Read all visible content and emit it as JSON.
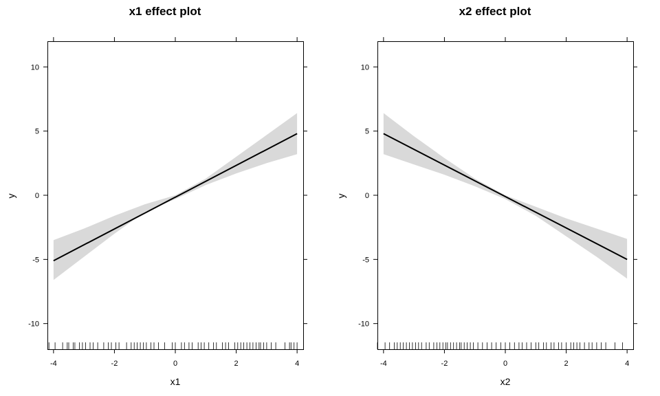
{
  "chart_data": [
    {
      "type": "line",
      "title": "x1 effect plot",
      "xlabel": "x1",
      "ylabel": "y",
      "xlim": [
        -4.2,
        4.2
      ],
      "ylim": [
        -12,
        12
      ],
      "xticks": [
        -4,
        -2,
        0,
        2,
        4
      ],
      "xtick_labels": [
        "-4",
        "-2",
        "0",
        "2",
        "4"
      ],
      "yticks": [
        -10,
        -5,
        0,
        5,
        10
      ],
      "ytick_labels": [
        "-10",
        "-5",
        "0",
        "5",
        "10"
      ],
      "grid": false,
      "fit": {
        "x": [
          -4,
          4
        ],
        "y": [
          -5.1,
          4.8
        ]
      },
      "band": {
        "x": [
          -4,
          -3,
          -2,
          -1,
          0,
          1,
          2,
          3,
          4
        ],
        "lower": [
          -6.6,
          -4.8,
          -3.0,
          -1.3,
          -0.3,
          0.8,
          1.7,
          2.5,
          3.2
        ],
        "upper": [
          -3.5,
          -2.6,
          -1.6,
          -0.7,
          0.0,
          1.3,
          3.0,
          4.7,
          6.4
        ]
      },
      "rug": [
        -4.15,
        -3.95,
        -3.7,
        -3.55,
        -3.5,
        -3.35,
        -3.3,
        -3.15,
        -3.05,
        -2.95,
        -2.8,
        -2.7,
        -2.55,
        -2.35,
        -2.2,
        -2.1,
        -1.95,
        -1.85,
        -1.6,
        -1.45,
        -1.35,
        -1.25,
        -1.15,
        -1.05,
        -0.95,
        -0.8,
        -0.7,
        -0.55,
        -0.35,
        -0.1,
        0.0,
        0.2,
        0.3,
        0.45,
        0.55,
        0.75,
        0.85,
        0.95,
        1.1,
        1.25,
        1.35,
        1.55,
        1.65,
        1.75,
        1.95,
        2.05,
        2.15,
        2.25,
        2.35,
        2.45,
        2.55,
        2.65,
        2.75,
        2.8,
        2.9,
        3.0,
        3.15,
        3.3,
        3.6,
        3.75,
        3.8,
        3.9,
        4.0
      ]
    },
    {
      "type": "line",
      "title": "x2 effect plot",
      "xlabel": "x2",
      "ylabel": "y",
      "xlim": [
        -4.2,
        4.2
      ],
      "ylim": [
        -12,
        12
      ],
      "xticks": [
        -4,
        -2,
        0,
        2,
        4
      ],
      "xtick_labels": [
        "-4",
        "-2",
        "0",
        "2",
        "4"
      ],
      "yticks": [
        -10,
        -5,
        0,
        5,
        10
      ],
      "ytick_labels": [
        "-10",
        "-5",
        "0",
        "5",
        "10"
      ],
      "grid": false,
      "fit": {
        "x": [
          -4,
          4
        ],
        "y": [
          4.8,
          -5.0
        ]
      },
      "band": {
        "x": [
          -4,
          -3,
          -2,
          -1,
          0,
          1,
          2,
          3,
          4
        ],
        "lower": [
          3.2,
          2.4,
          1.6,
          0.7,
          -0.3,
          -1.6,
          -3.2,
          -4.8,
          -6.5
        ],
        "upper": [
          6.4,
          4.6,
          2.9,
          1.3,
          0.0,
          -0.9,
          -1.8,
          -2.6,
          -3.4
        ]
      },
      "rug": [
        -4.2,
        -3.95,
        -3.8,
        -3.65,
        -3.55,
        -3.45,
        -3.35,
        -3.25,
        -3.15,
        -3.05,
        -2.95,
        -2.85,
        -2.75,
        -2.6,
        -2.5,
        -2.35,
        -2.25,
        -2.15,
        -2.05,
        -1.95,
        -1.9,
        -1.8,
        -1.7,
        -1.6,
        -1.5,
        -1.45,
        -1.35,
        -1.25,
        -1.15,
        -1.05,
        -0.9,
        -0.75,
        -0.6,
        -0.45,
        -0.3,
        -0.15,
        0.0,
        0.15,
        0.3,
        0.45,
        0.55,
        0.7,
        0.85,
        1.0,
        1.1,
        1.25,
        1.35,
        1.5,
        1.6,
        1.75,
        1.85,
        2.0,
        2.15,
        2.25,
        2.35,
        2.45,
        2.6,
        2.75,
        2.85,
        3.0,
        3.15,
        3.3,
        3.6,
        3.85
      ]
    }
  ]
}
